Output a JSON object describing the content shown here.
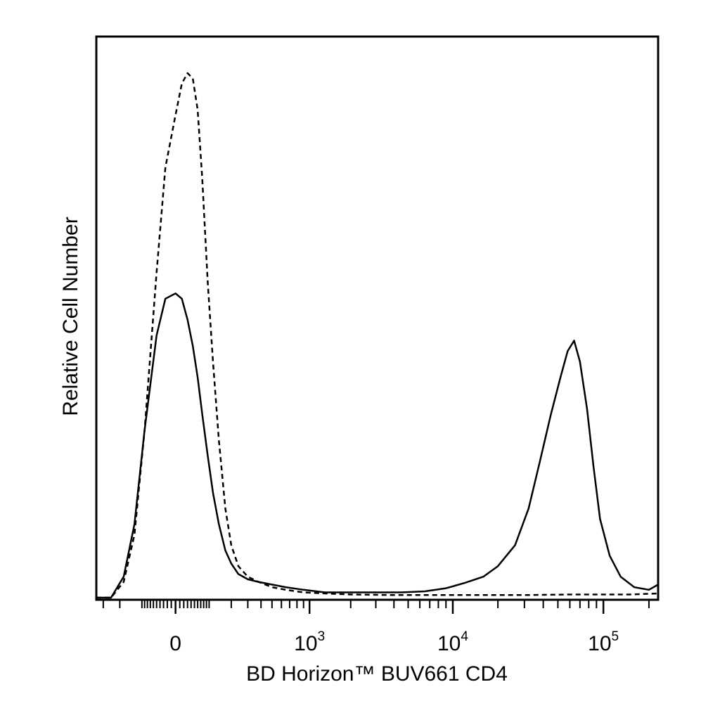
{
  "chart_data": {
    "type": "line",
    "title": "",
    "xlabel": "BD Horizon™ BUV661 CD4",
    "ylabel": "Relative Cell Number",
    "x_scale": "biexponential",
    "xlim": [
      -350,
      230000
    ],
    "ylim": [
      0,
      1.0
    ],
    "grid": false,
    "legend": "none",
    "x_ticks": [
      {
        "value": 0,
        "base": "0",
        "exp": ""
      },
      {
        "value": 1000,
        "base": "10",
        "exp": "3"
      },
      {
        "value": 10000,
        "base": "10",
        "exp": "4"
      },
      {
        "value": 100000,
        "base": "10",
        "exp": "5"
      }
    ],
    "series": [
      {
        "style": "dashed",
        "color": "#000000",
        "x": [
          -350,
          -250,
          -180,
          -130,
          -90,
          -50,
          -25,
          0,
          15,
          30,
          45,
          60,
          75,
          95,
          115,
          140,
          170,
          200,
          240,
          300,
          380,
          500,
          650,
          900,
          1300,
          2000,
          4000,
          8000,
          15000,
          30000,
          60000,
          100000,
          150000,
          230000
        ],
        "y": [
          0,
          0,
          0.03,
          0.12,
          0.32,
          0.62,
          0.82,
          0.92,
          0.98,
          1.0,
          0.99,
          0.93,
          0.8,
          0.6,
          0.45,
          0.3,
          0.17,
          0.1,
          0.06,
          0.04,
          0.03,
          0.02,
          0.015,
          0.01,
          0.008,
          0.006,
          0.005,
          0.005,
          0.005,
          0.005,
          0.006,
          0.006,
          0.006,
          0.008
        ]
      },
      {
        "style": "solid",
        "color": "#000000",
        "x": [
          -350,
          -250,
          -180,
          -130,
          -90,
          -50,
          -25,
          0,
          15,
          30,
          45,
          60,
          75,
          95,
          115,
          140,
          170,
          200,
          240,
          300,
          380,
          500,
          650,
          900,
          1300,
          2000,
          3000,
          4500,
          6500,
          9000,
          12000,
          16000,
          20000,
          26000,
          32000,
          38000,
          45000,
          52000,
          58000,
          64000,
          70000,
          78000,
          86000,
          95000,
          110000,
          130000,
          160000,
          200000,
          230000
        ],
        "y": [
          0,
          0,
          0.04,
          0.14,
          0.32,
          0.5,
          0.57,
          0.58,
          0.57,
          0.53,
          0.48,
          0.42,
          0.35,
          0.27,
          0.2,
          0.14,
          0.09,
          0.065,
          0.045,
          0.035,
          0.03,
          0.025,
          0.02,
          0.015,
          0.01,
          0.01,
          0.01,
          0.01,
          0.012,
          0.018,
          0.028,
          0.04,
          0.06,
          0.1,
          0.17,
          0.26,
          0.35,
          0.42,
          0.47,
          0.49,
          0.45,
          0.36,
          0.25,
          0.15,
          0.08,
          0.04,
          0.02,
          0.015,
          0.025
        ]
      }
    ]
  }
}
